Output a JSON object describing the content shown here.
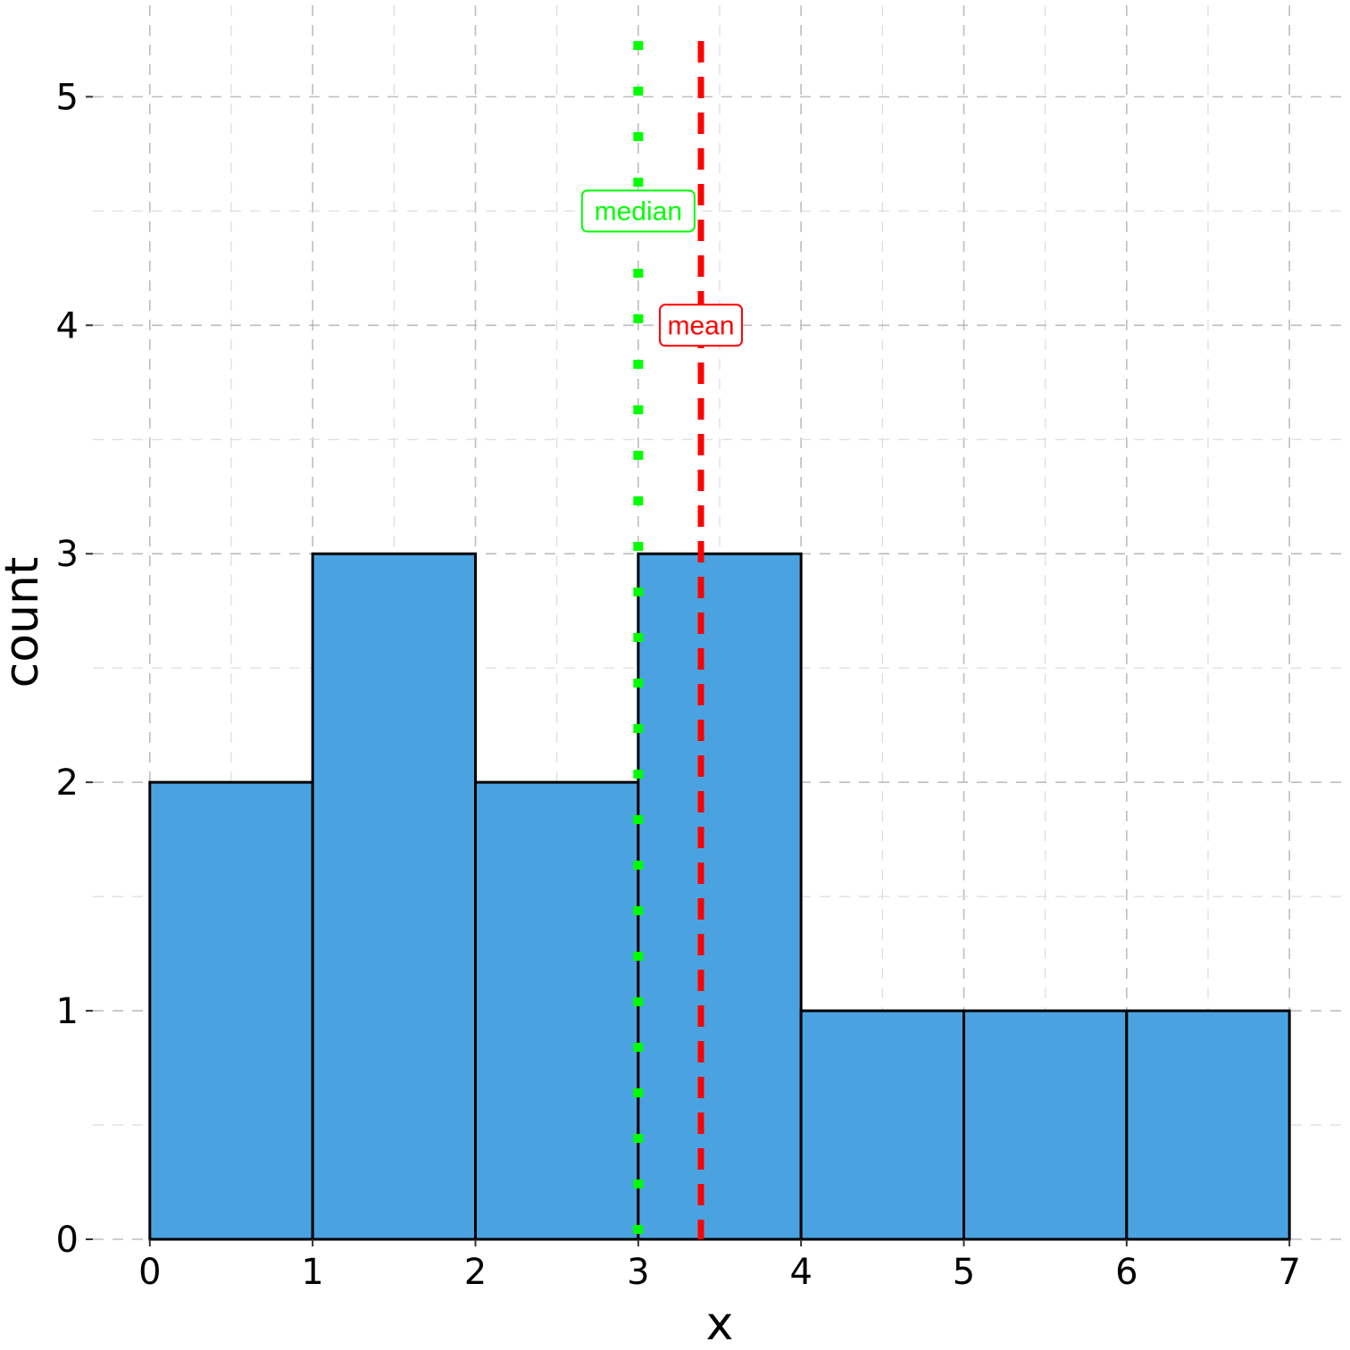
{
  "chart_data": {
    "type": "bar",
    "subtype": "histogram",
    "bins": [
      {
        "x0": 0,
        "x1": 1,
        "count": 2
      },
      {
        "x0": 1,
        "x1": 2,
        "count": 3
      },
      {
        "x0": 2,
        "x1": 3,
        "count": 2
      },
      {
        "x0": 3,
        "x1": 4,
        "count": 3
      },
      {
        "x0": 4,
        "x1": 5,
        "count": 1
      },
      {
        "x0": 5,
        "x1": 6,
        "count": 1
      },
      {
        "x0": 6,
        "x1": 7,
        "count": 1
      }
    ],
    "xlabel": "x",
    "ylabel": "count",
    "xlim": [
      -0.35,
      7.35
    ],
    "ylim": [
      0,
      5.4
    ],
    "xticks": [
      "0",
      "1",
      "2",
      "3",
      "4",
      "5",
      "6",
      "7"
    ],
    "yticks": [
      "0",
      "1",
      "2",
      "3",
      "4",
      "5"
    ],
    "grid": true,
    "bar_color": "#4aa3e0",
    "bar_edge_color": "#000000",
    "reference_lines": [
      {
        "name": "median",
        "x": 3.0,
        "color": "#00ff00",
        "style": "dotted",
        "label_y": 4.5
      },
      {
        "name": "mean",
        "x": 3.385,
        "color": "#ff0000",
        "style": "dashed",
        "label_y": 4.0
      }
    ]
  }
}
